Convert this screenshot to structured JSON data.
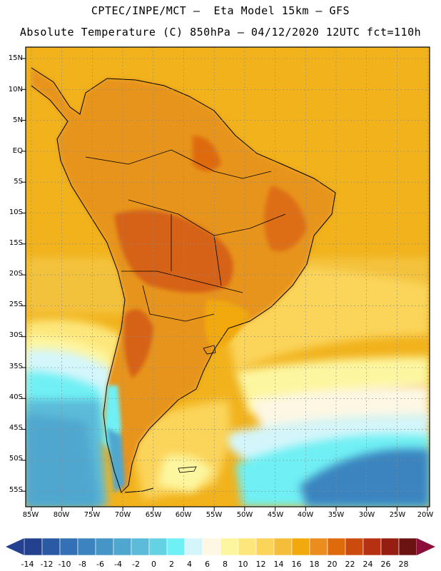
{
  "header": {
    "line1": "CPTEC/INPE/MCT –  Eta Model 15km – GFS",
    "line2": "Absolute Temperature (C) 850hPa – 04/12/2020 12UTC fct=110h"
  },
  "latitude_labels": [
    "15N",
    "10N",
    "5N",
    "EQ",
    "5S",
    "10S",
    "15S",
    "20S",
    "25S",
    "30S",
    "35S",
    "40S",
    "45S",
    "50S",
    "55S"
  ],
  "longitude_labels": [
    "85W",
    "80W",
    "75W",
    "70W",
    "65W",
    "60W",
    "55W",
    "50W",
    "45W",
    "40W",
    "35W",
    "30W",
    "25W",
    "20W"
  ],
  "colorbar": {
    "labels": [
      "-14",
      "-12",
      "-10",
      "-8",
      "-6",
      "-4",
      "-2",
      "0",
      "2",
      "4",
      "6",
      "8",
      "10",
      "12",
      "14",
      "16",
      "18",
      "20",
      "22",
      "24",
      "26",
      "28"
    ],
    "colors": [
      "#23418e",
      "#2a5aa3",
      "#3371b4",
      "#3b84c0",
      "#4596c6",
      "#4fa7cf",
      "#5bbbd9",
      "#65d2e4",
      "#6ff0f4",
      "#d4f6fb",
      "#fdf7e4",
      "#fdf6a0",
      "#fde77c",
      "#fbd45a",
      "#f4bd3a",
      "#f1a90d",
      "#eb8d1e",
      "#de6a0c",
      "#cc4b0c",
      "#b53111",
      "#951d12",
      "#6b1313"
    ]
  },
  "map": {
    "ocean_color": "#f1b21c",
    "land_color": "#e7941c",
    "hot_color": "#d56217",
    "cold_color": "#45c7e6"
  }
}
